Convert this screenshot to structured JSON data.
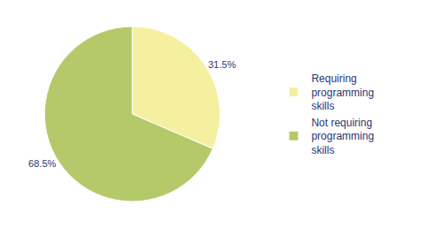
{
  "chart_data": {
    "type": "pie",
    "categories": [
      "Requiring\nprogramming\nskills",
      "Not requiring\nprogramming\nskills"
    ],
    "values": [
      31.5,
      68.5
    ],
    "value_labels": [
      "31.5%",
      "68.5%"
    ],
    "data_labels": true,
    "colors": [
      "#f5f0a0",
      "#b5c96a"
    ],
    "legend": "right"
  }
}
